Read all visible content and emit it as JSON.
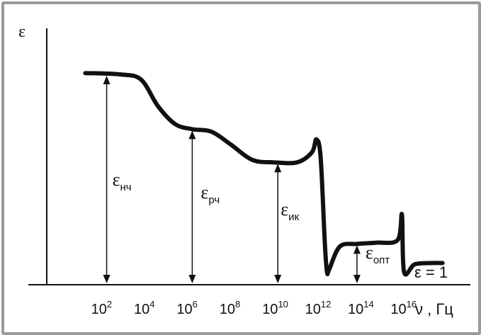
{
  "chart_data": {
    "type": "line",
    "title": "",
    "ylabel": "ε",
    "xlabel": "ν , Гц",
    "x_scale": "log",
    "x_ticks": [
      {
        "exp": 2,
        "label": "10",
        "sup": "2"
      },
      {
        "exp": 4,
        "label": "10",
        "sup": "4"
      },
      {
        "exp": 6,
        "label": "10",
        "sup": "6"
      },
      {
        "exp": 8,
        "label": "10",
        "sup": "8"
      },
      {
        "exp": 10,
        "label": "10",
        "sup": "10"
      },
      {
        "exp": 12,
        "label": "10",
        "sup": "12"
      },
      {
        "exp": 14,
        "label": "10",
        "sup": "14"
      },
      {
        "exp": 16,
        "label": "10",
        "sup": "16"
      }
    ],
    "curve": [
      [
        1.0,
        16.6
      ],
      [
        2.6,
        16.5
      ],
      [
        3.6,
        16.1
      ],
      [
        4.4,
        14.0
      ],
      [
        5.2,
        12.6
      ],
      [
        6.0,
        12.2
      ],
      [
        6.9,
        12.0
      ],
      [
        7.8,
        11.0
      ],
      [
        8.8,
        9.8
      ],
      [
        9.8,
        9.6
      ],
      [
        10.9,
        9.6
      ],
      [
        11.6,
        10.4
      ],
      [
        11.8,
        11.4
      ],
      [
        12.0,
        10.0
      ],
      [
        12.2,
        3.2
      ],
      [
        12.3,
        1.0
      ],
      [
        12.4,
        1.2
      ],
      [
        12.9,
        3.0
      ],
      [
        13.7,
        3.2
      ],
      [
        14.6,
        3.3
      ],
      [
        15.6,
        3.5
      ],
      [
        15.8,
        5.5
      ],
      [
        15.9,
        1.0
      ],
      [
        16.4,
        1.6
      ],
      [
        17.2,
        1.7
      ],
      [
        17.7,
        1.7
      ]
    ],
    "annotations": [
      {
        "name": "epsilon-nch",
        "base": "ε",
        "sub": "нч",
        "x": 2.0,
        "y": 16.5
      },
      {
        "name": "epsilon-rch",
        "base": "ε",
        "sub": "рч",
        "x": 6.0,
        "y": 12.2
      },
      {
        "name": "epsilon-ik",
        "base": "ε",
        "sub": "ик",
        "x": 10.0,
        "y": 9.6
      },
      {
        "name": "epsilon-opt",
        "base": "ε",
        "sub": "опт",
        "x": 13.7,
        "y": 3.2
      }
    ],
    "reference_label": "ε = 1",
    "xlim": [
      -0.8,
      19.0
    ],
    "ylim": [
      0,
      18
    ],
    "grid": false,
    "legend": "none",
    "colors": {
      "frame": "#9a9a9a",
      "ink": "#111111",
      "background": "#ffffff"
    }
  }
}
